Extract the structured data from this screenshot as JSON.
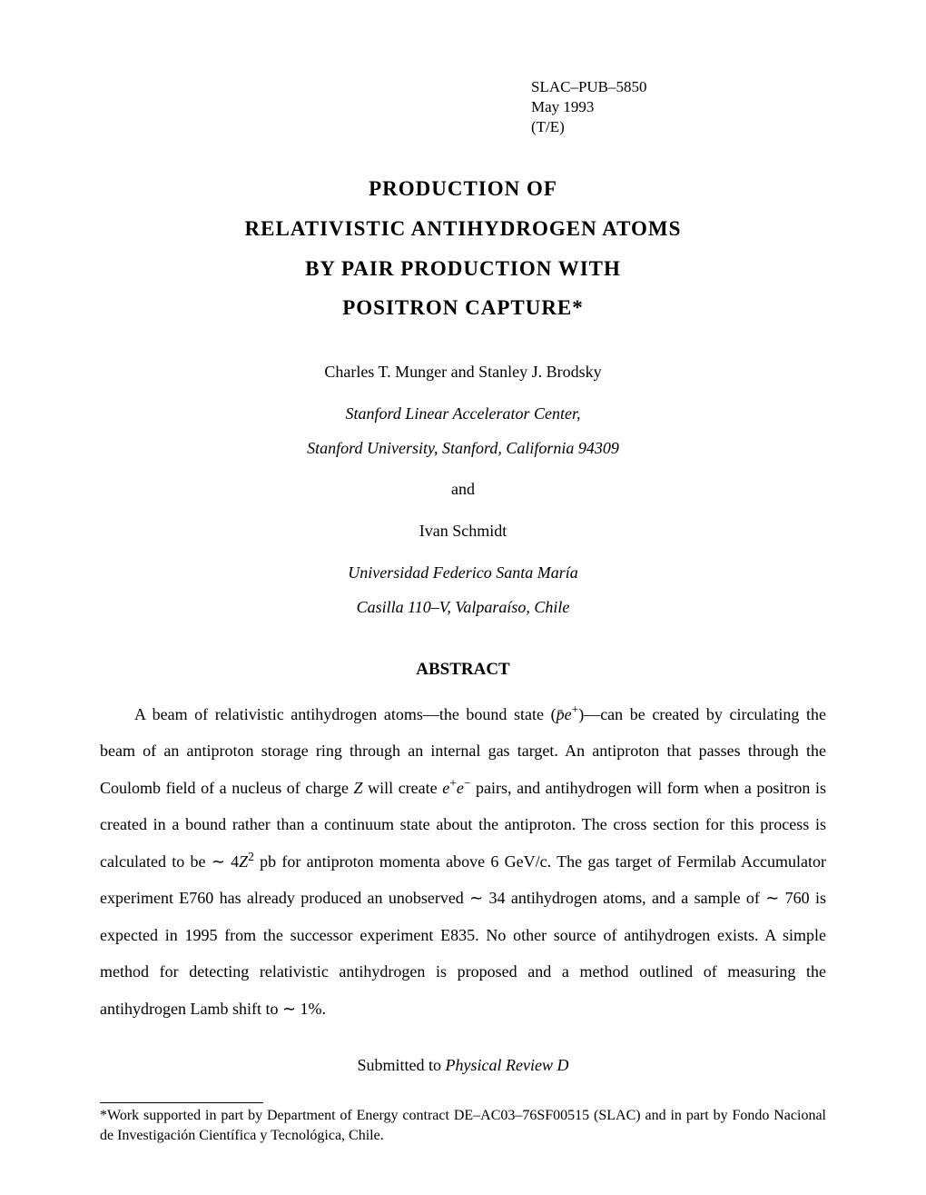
{
  "header": {
    "report_id": "SLAC–PUB–5850",
    "date": "May 1993",
    "code": "(T/E)"
  },
  "title": {
    "line1": "PRODUCTION   OF",
    "line2": "RELATIVISTIC  ANTIHYDROGEN  ATOMS",
    "line3": "BY PAIR PRODUCTION WITH",
    "line4": "POSITRON   CAPTURE*"
  },
  "author_block1": {
    "authors": "Charles T. Munger and Stanley J. Brodsky",
    "affiliation_line1": "Stanford Linear Accelerator Center,",
    "affiliation_line2": "Stanford University, Stanford, California 94309"
  },
  "connector": "and",
  "author_block2": {
    "authors": "Ivan Schmidt",
    "affiliation_line1": "Universidad Federico Santa María",
    "affiliation_line2": "Casilla 110–V, Valparaíso, Chile"
  },
  "abstract": {
    "heading": "ABSTRACT",
    "text_pre": "A beam of relativistic antihydrogen atoms—the bound state (",
    "formula1_base": "p̄e",
    "formula1_sup": "+",
    "text_1": ")—can be created by circulating the beam of an antiproton storage ring through an internal gas target. An antiproton that passes through the Coulomb field of a nucleus of charge ",
    "var_Z": "Z",
    "text_2": " will create ",
    "formula2_base": "e",
    "formula2_sup1": "+",
    "formula2_sup2": "−",
    "text_3": " pairs, and antihydrogen will form when a positron is created in a bound rather than a continuum state about the antiproton. The cross section for this process is calculated to be ∼ 4",
    "formula3_base": "Z",
    "formula3_sup": "2",
    "text_4": " pb for antiproton momenta above 6 GeV/c. The gas target of Fermilab Accumulator experiment E760 has already produced an unobserved ∼ 34 antihydrogen atoms, and a sample of ∼ 760 is expected in 1995 from the successor experiment E835. No other source of antihydrogen exists. A simple method for detecting relativistic antihydrogen is proposed and a method outlined of measuring the antihydrogen Lamb shift to ∼ 1%."
  },
  "submitted": {
    "prefix": "Submitted to ",
    "journal": "Physical Review D"
  },
  "footnote": "*Work supported in part by Department of Energy contract DE–AC03–76SF00515 (SLAC) and in part by Fondo Nacional de Investigación Científica y Tecnológica, Chile."
}
